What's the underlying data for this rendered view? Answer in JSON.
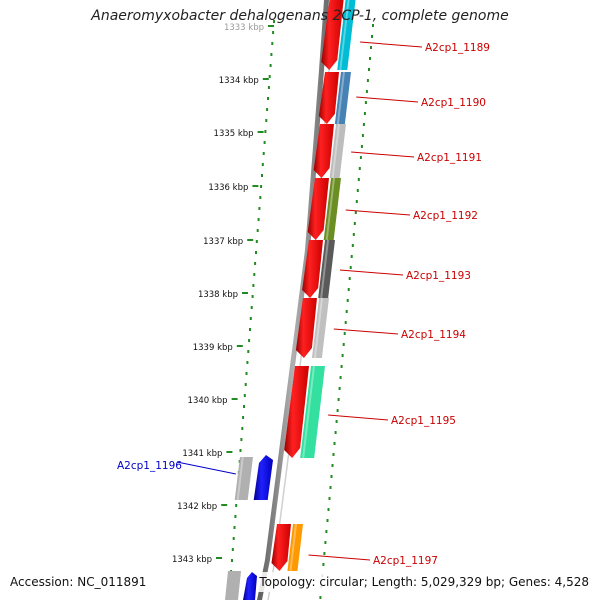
{
  "title": "Anaeromyxobacter dehalogenans 2CP-1, complete genome",
  "accession_text": "Accession: NC_011891",
  "summary_text": "Topology: circular; Length: 5,029,329 bp; Genes: 4,528",
  "kbp_labels": [
    "1333 kbp",
    "1334 kbp",
    "1335 kbp",
    "1336 kbp",
    "1337 kbp",
    "1338 kbp",
    "1339 kbp",
    "1340 kbp",
    "1341 kbp",
    "1342 kbp",
    "1343 kbp"
  ],
  "genes": [
    {
      "label": "A2cp1_1189",
      "strand": "forward",
      "label_color": "#cc0000",
      "cog_color": "#00bcd4"
    },
    {
      "label": "A2cp1_1190",
      "strand": "forward",
      "label_color": "#cc0000",
      "cog_color": "#4682b4"
    },
    {
      "label": "A2cp1_1191",
      "strand": "forward",
      "label_color": "#cc0000",
      "cog_color": "#bdbdbd"
    },
    {
      "label": "A2cp1_1192",
      "strand": "forward",
      "label_color": "#cc0000",
      "cog_color": "#6b8e23"
    },
    {
      "label": "A2cp1_1193",
      "strand": "forward",
      "label_color": "#cc0000",
      "cog_color": "#5a5a5a"
    },
    {
      "label": "A2cp1_1194",
      "strand": "forward",
      "label_color": "#cc0000",
      "cog_color": "#c0c0c0"
    },
    {
      "label": "A2cp1_1195",
      "strand": "forward",
      "label_color": "#cc0000",
      "cog_color": "#33e0a0"
    },
    {
      "label": "A2cp1_1196",
      "strand": "reverse",
      "label_color": "#0000cc",
      "cog_color": "#b0b0b0"
    },
    {
      "label": "A2cp1_1197",
      "strand": "forward",
      "label_color": "#cc0000",
      "cog_color": "#ff9900"
    }
  ],
  "colors": {
    "forward_gene": "#e00000",
    "reverse_gene": "#0000dd",
    "backbone": "#808080",
    "ticks": "#228b22"
  }
}
